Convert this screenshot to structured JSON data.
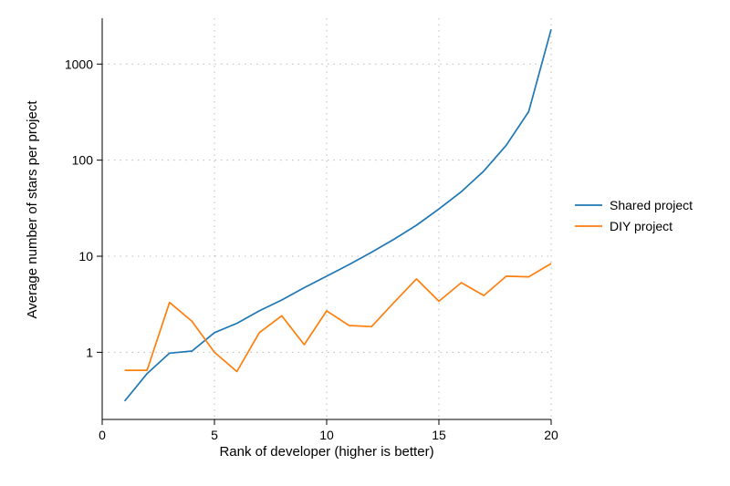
{
  "chart_data": {
    "type": "line",
    "title": "",
    "xlabel": "Rank of developer (higher is better)",
    "ylabel": "Average number of stars per project",
    "y_scale": "log",
    "xlim": [
      0,
      20
    ],
    "ylim": [
      0.2,
      3000
    ],
    "x_ticks": [
      0,
      5,
      10,
      15,
      20
    ],
    "x_tick_labels": [
      "0",
      "5",
      "10",
      "15",
      "20"
    ],
    "y_ticks": [
      1,
      10,
      100,
      1000
    ],
    "y_tick_labels": [
      "1",
      "10",
      "100",
      "1000"
    ],
    "grid": true,
    "legend_position": "right",
    "x": [
      1,
      2,
      3,
      4,
      5,
      6,
      7,
      8,
      9,
      10,
      11,
      12,
      13,
      14,
      15,
      16,
      17,
      18,
      19,
      20
    ],
    "series": [
      {
        "name": "Shared project",
        "color": "#1f77b4",
        "values": [
          0.31,
          0.6,
          0.98,
          1.03,
          1.6,
          2.0,
          2.7,
          3.5,
          4.7,
          6.2,
          8.2,
          11.0,
          15.0,
          21.0,
          31.0,
          47.0,
          77.0,
          143.0,
          320.0,
          2300.0
        ]
      },
      {
        "name": "DIY project",
        "color": "#ff7f0e",
        "values": [
          0.65,
          0.65,
          3.3,
          2.1,
          1.0,
          0.63,
          1.6,
          2.4,
          1.2,
          2.7,
          1.9,
          1.85,
          3.3,
          5.8,
          3.4,
          5.3,
          3.9,
          6.2,
          6.1,
          8.4
        ]
      }
    ]
  }
}
